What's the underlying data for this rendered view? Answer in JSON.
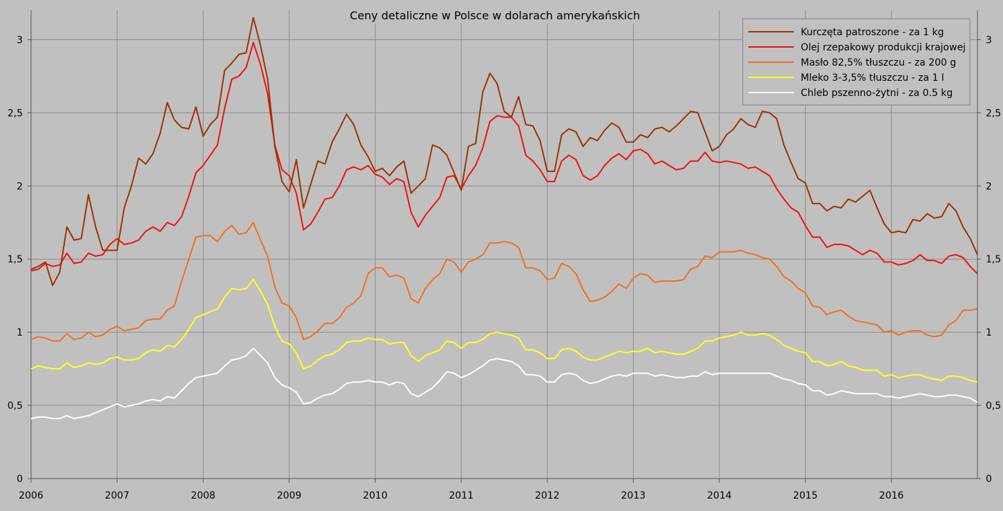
{
  "chart_data": {
    "type": "line",
    "title": "Ceny detaliczne w Polsce w dolarach amerykańskich",
    "xlabel": "",
    "ylabel": "",
    "xlim": [
      2006,
      2017
    ],
    "ylim": [
      0,
      3.2
    ],
    "grid": true,
    "legend_position": "top-right",
    "x_ticks": [
      "2006",
      "2007",
      "2008",
      "2009",
      "2010",
      "2011",
      "2012",
      "2013",
      "2014",
      "2015",
      "2016"
    ],
    "y_ticks": [
      "0",
      "0,5",
      "1",
      "1,5",
      "2",
      "2,5",
      "3"
    ],
    "x_start": 2006,
    "x_step_per_point": 0.0833333,
    "series": [
      {
        "name": "Kurczęta patroszone - za 1 kg",
        "color": "#993300",
        "values": [
          1.43,
          1.45,
          1.48,
          1.32,
          1.41,
          1.72,
          1.63,
          1.64,
          1.94,
          1.72,
          1.56,
          1.56,
          1.56,
          1.85,
          2.0,
          2.19,
          2.15,
          2.22,
          2.36,
          2.57,
          2.45,
          2.4,
          2.39,
          2.54,
          2.34,
          2.42,
          2.47,
          2.79,
          2.84,
          2.9,
          2.91,
          3.15,
          2.96,
          2.73,
          2.27,
          2.03,
          1.96,
          2.18,
          1.85,
          2.01,
          2.17,
          2.15,
          2.3,
          2.39,
          2.49,
          2.42,
          2.28,
          2.2,
          2.1,
          2.12,
          2.07,
          2.13,
          2.17,
          1.95,
          2.0,
          2.05,
          2.28,
          2.26,
          2.21,
          2.09,
          1.97,
          2.27,
          2.29,
          2.64,
          2.77,
          2.7,
          2.51,
          2.47,
          2.61,
          2.42,
          2.41,
          2.31,
          2.1,
          2.1,
          2.35,
          2.39,
          2.37,
          2.27,
          2.33,
          2.31,
          2.38,
          2.43,
          2.4,
          2.3,
          2.3,
          2.35,
          2.33,
          2.39,
          2.4,
          2.37,
          2.41,
          2.46,
          2.51,
          2.5,
          2.37,
          2.24,
          2.27,
          2.35,
          2.39,
          2.46,
          2.42,
          2.4,
          2.51,
          2.5,
          2.46,
          2.28,
          2.16,
          2.05,
          2.02,
          1.88,
          1.88,
          1.83,
          1.86,
          1.85,
          1.91,
          1.89,
          1.93,
          1.97,
          1.85,
          1.74,
          1.68,
          1.69,
          1.68,
          1.77,
          1.76,
          1.81,
          1.78,
          1.79,
          1.88,
          1.83,
          1.72,
          1.64,
          1.53
        ]
      },
      {
        "name": "Olej rzepakowy produkcji krajowej",
        "color": "#ee1111",
        "values": [
          1.42,
          1.43,
          1.47,
          1.45,
          1.46,
          1.54,
          1.47,
          1.48,
          1.54,
          1.52,
          1.53,
          1.6,
          1.64,
          1.6,
          1.61,
          1.63,
          1.69,
          1.72,
          1.69,
          1.75,
          1.73,
          1.79,
          1.93,
          2.09,
          2.14,
          2.21,
          2.28,
          2.53,
          2.73,
          2.75,
          2.81,
          2.98,
          2.83,
          2.63,
          2.28,
          2.11,
          2.07,
          1.95,
          1.7,
          1.74,
          1.82,
          1.91,
          1.92,
          2.0,
          2.11,
          2.13,
          2.11,
          2.14,
          2.08,
          2.06,
          2.01,
          2.05,
          2.03,
          1.82,
          1.72,
          1.8,
          1.86,
          1.92,
          2.06,
          2.07,
          1.98,
          2.07,
          2.14,
          2.26,
          2.44,
          2.48,
          2.47,
          2.47,
          2.41,
          2.21,
          2.17,
          2.11,
          2.03,
          2.03,
          2.17,
          2.21,
          2.18,
          2.07,
          2.04,
          2.07,
          2.14,
          2.19,
          2.22,
          2.18,
          2.24,
          2.25,
          2.22,
          2.15,
          2.17,
          2.14,
          2.11,
          2.12,
          2.17,
          2.17,
          2.23,
          2.17,
          2.16,
          2.17,
          2.16,
          2.15,
          2.12,
          2.13,
          2.1,
          2.07,
          1.98,
          1.91,
          1.85,
          1.82,
          1.73,
          1.65,
          1.65,
          1.58,
          1.6,
          1.6,
          1.59,
          1.56,
          1.53,
          1.56,
          1.54,
          1.48,
          1.48,
          1.46,
          1.47,
          1.49,
          1.53,
          1.49,
          1.49,
          1.47,
          1.52,
          1.53,
          1.51,
          1.45,
          1.4
        ]
      },
      {
        "name": "Masło 82,5% tłuszczu - za 200 g",
        "color": "#f07020",
        "values": [
          0.95,
          0.97,
          0.96,
          0.94,
          0.94,
          0.99,
          0.95,
          0.96,
          1.0,
          0.97,
          0.98,
          1.02,
          1.04,
          1.01,
          1.02,
          1.03,
          1.08,
          1.09,
          1.09,
          1.15,
          1.18,
          1.35,
          1.5,
          1.65,
          1.66,
          1.66,
          1.62,
          1.69,
          1.73,
          1.67,
          1.68,
          1.75,
          1.63,
          1.52,
          1.31,
          1.2,
          1.18,
          1.1,
          0.95,
          0.97,
          1.01,
          1.06,
          1.06,
          1.1,
          1.17,
          1.2,
          1.25,
          1.4,
          1.44,
          1.44,
          1.38,
          1.39,
          1.37,
          1.23,
          1.2,
          1.3,
          1.36,
          1.4,
          1.5,
          1.48,
          1.41,
          1.48,
          1.5,
          1.53,
          1.61,
          1.61,
          1.62,
          1.61,
          1.58,
          1.44,
          1.44,
          1.42,
          1.36,
          1.37,
          1.47,
          1.45,
          1.4,
          1.29,
          1.21,
          1.22,
          1.24,
          1.28,
          1.33,
          1.3,
          1.37,
          1.4,
          1.39,
          1.34,
          1.35,
          1.35,
          1.35,
          1.36,
          1.43,
          1.45,
          1.52,
          1.51,
          1.55,
          1.55,
          1.55,
          1.56,
          1.54,
          1.53,
          1.51,
          1.5,
          1.45,
          1.38,
          1.35,
          1.3,
          1.27,
          1.18,
          1.17,
          1.12,
          1.14,
          1.15,
          1.11,
          1.08,
          1.07,
          1.06,
          1.05,
          1.0,
          1.01,
          0.98,
          1.0,
          1.01,
          1.01,
          0.98,
          0.97,
          0.98,
          1.05,
          1.08,
          1.15,
          1.15,
          1.16
        ]
      },
      {
        "name": "Mleko 3-3,5% tłuszczu - za 1 l",
        "color": "#ffff22",
        "values": [
          0.75,
          0.77,
          0.76,
          0.75,
          0.75,
          0.79,
          0.76,
          0.77,
          0.79,
          0.78,
          0.79,
          0.82,
          0.83,
          0.81,
          0.81,
          0.82,
          0.86,
          0.88,
          0.87,
          0.91,
          0.9,
          0.95,
          1.02,
          1.1,
          1.12,
          1.14,
          1.16,
          1.24,
          1.3,
          1.29,
          1.3,
          1.36,
          1.28,
          1.19,
          1.04,
          0.94,
          0.92,
          0.86,
          0.75,
          0.77,
          0.81,
          0.84,
          0.85,
          0.88,
          0.93,
          0.94,
          0.94,
          0.96,
          0.95,
          0.95,
          0.92,
          0.93,
          0.93,
          0.84,
          0.8,
          0.84,
          0.86,
          0.88,
          0.94,
          0.93,
          0.89,
          0.93,
          0.93,
          0.95,
          0.99,
          1.0,
          0.99,
          0.98,
          0.96,
          0.88,
          0.88,
          0.86,
          0.82,
          0.82,
          0.88,
          0.89,
          0.87,
          0.83,
          0.81,
          0.81,
          0.83,
          0.85,
          0.87,
          0.86,
          0.87,
          0.87,
          0.89,
          0.86,
          0.87,
          0.86,
          0.85,
          0.85,
          0.87,
          0.89,
          0.94,
          0.94,
          0.96,
          0.97,
          0.98,
          1.0,
          0.98,
          0.98,
          0.99,
          0.98,
          0.95,
          0.91,
          0.89,
          0.87,
          0.86,
          0.8,
          0.8,
          0.77,
          0.78,
          0.8,
          0.77,
          0.76,
          0.74,
          0.74,
          0.74,
          0.7,
          0.71,
          0.69,
          0.7,
          0.71,
          0.71,
          0.69,
          0.68,
          0.67,
          0.7,
          0.7,
          0.69,
          0.67,
          0.66
        ]
      },
      {
        "name": "Chleb pszenno-żytni - za 0.5 kg",
        "color": "#ffffff",
        "values": [
          0.41,
          0.42,
          0.42,
          0.41,
          0.41,
          0.43,
          0.41,
          0.42,
          0.43,
          0.45,
          0.47,
          0.49,
          0.51,
          0.49,
          0.5,
          0.51,
          0.53,
          0.54,
          0.53,
          0.56,
          0.55,
          0.6,
          0.65,
          0.69,
          0.7,
          0.71,
          0.72,
          0.77,
          0.81,
          0.82,
          0.84,
          0.89,
          0.84,
          0.79,
          0.69,
          0.64,
          0.62,
          0.59,
          0.51,
          0.52,
          0.55,
          0.57,
          0.58,
          0.61,
          0.65,
          0.66,
          0.66,
          0.67,
          0.66,
          0.66,
          0.64,
          0.66,
          0.65,
          0.58,
          0.56,
          0.59,
          0.62,
          0.67,
          0.73,
          0.72,
          0.69,
          0.71,
          0.74,
          0.77,
          0.81,
          0.82,
          0.81,
          0.8,
          0.77,
          0.71,
          0.71,
          0.7,
          0.66,
          0.66,
          0.71,
          0.72,
          0.71,
          0.67,
          0.65,
          0.66,
          0.68,
          0.7,
          0.71,
          0.7,
          0.72,
          0.72,
          0.72,
          0.7,
          0.71,
          0.7,
          0.69,
          0.69,
          0.7,
          0.7,
          0.73,
          0.71,
          0.72,
          0.72,
          0.72,
          0.72,
          0.72,
          0.72,
          0.72,
          0.72,
          0.7,
          0.68,
          0.67,
          0.65,
          0.64,
          0.6,
          0.6,
          0.57,
          0.58,
          0.6,
          0.59,
          0.58,
          0.58,
          0.58,
          0.58,
          0.56,
          0.56,
          0.55,
          0.56,
          0.57,
          0.58,
          0.57,
          0.56,
          0.56,
          0.57,
          0.57,
          0.56,
          0.55,
          0.52
        ]
      }
    ]
  }
}
